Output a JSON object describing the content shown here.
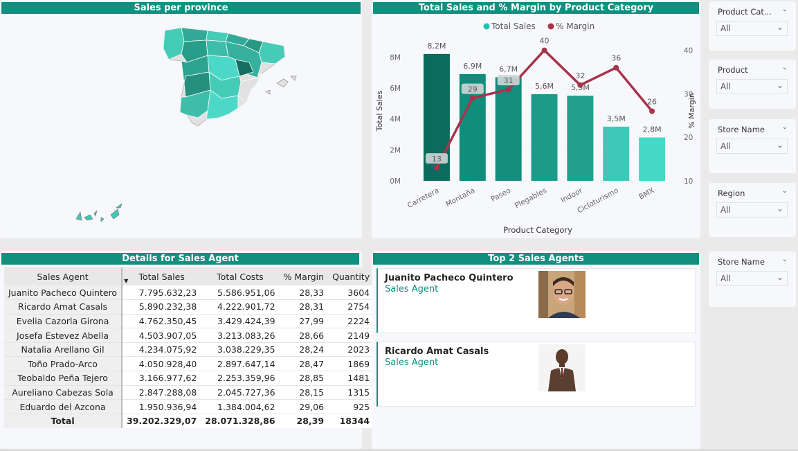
{
  "map": {
    "title": "Sales per province"
  },
  "chart": {
    "title": "Total Sales and % Margin by Product Category"
  },
  "chart_data": {
    "type": "bar",
    "title": "Total Sales and % Margin by Product Category",
    "xlabel": "Product Category",
    "ylabel": "Total Sales",
    "y2label": "% Margin",
    "categories": [
      "Carretera",
      "Montaña",
      "Paseo",
      "Plegables",
      "Indoor",
      "Cicloturismo",
      "BMX"
    ],
    "series": [
      {
        "name": "Total Sales",
        "type": "bar",
        "values": [
          8.2,
          6.9,
          6.7,
          5.6,
          5.5,
          3.5,
          2.8
        ],
        "labels": [
          "8,2M",
          "6,9M",
          "6,7M",
          "5,6M",
          "5,5M",
          "3,5M",
          "2,8M"
        ]
      },
      {
        "name": "% Margin",
        "type": "line",
        "values": [
          13,
          29,
          31,
          40,
          32,
          36,
          26
        ],
        "labels": [
          "13",
          "29",
          "31",
          "40",
          "32",
          "36",
          "26"
        ]
      }
    ],
    "ylim": [
      0,
      9
    ],
    "y2lim": [
      10,
      42
    ],
    "yticks": [
      "0M",
      "2M",
      "4M",
      "6M",
      "8M"
    ],
    "y2ticks": [
      "10",
      "20",
      "30",
      "40"
    ],
    "legend": "top-center",
    "bar_colors": [
      "#0b6b5c",
      "#118d7b",
      "#148d7d",
      "#1d9b89",
      "#22a08e",
      "#3cc9b8",
      "#45d8c6"
    ],
    "line_color": "#a8334b"
  },
  "table": {
    "title": "Details for Sales Agent",
    "columns": [
      "Sales Agent",
      "Total Sales",
      "Total Costs",
      "% Margin",
      "Quantity"
    ],
    "rows": [
      [
        "Juanito Pacheco Quintero",
        "7.795.632,23",
        "5.586.951,06",
        "28,33",
        "3604"
      ],
      [
        "Ricardo Amat Casals",
        "5.890.232,38",
        "4.222.901,72",
        "28,31",
        "2754"
      ],
      [
        "Evelia Cazorla Girona",
        "4.762.350,45",
        "3.429.424,39",
        "27,99",
        "2224"
      ],
      [
        "Josefa Estevez Abella",
        "4.503.907,05",
        "3.213.083,26",
        "28,66",
        "2149"
      ],
      [
        "Natalia Arellano Gil",
        "4.234.075,92",
        "3.038.229,35",
        "28,24",
        "2023"
      ],
      [
        "Toño Prado-Arco",
        "4.050.928,40",
        "2.897.647,14",
        "28,47",
        "1869"
      ],
      [
        "Teobaldo Peña Tejero",
        "3.166.977,62",
        "2.253.359,96",
        "28,85",
        "1481"
      ],
      [
        "Aureliano Cabezas Sola",
        "2.847.288,08",
        "2.045.727,36",
        "28,15",
        "1315"
      ],
      [
        "Eduardo del Azcona",
        "1.950.936,94",
        "1.384.004,62",
        "29,06",
        "925"
      ]
    ],
    "total": [
      "Total",
      "39.202.329,07",
      "28.071.328,86",
      "28,39",
      "18344"
    ]
  },
  "agents": {
    "title": "Top 2 Sales Agents",
    "cards": [
      {
        "name": "Juanito Pacheco Quintero",
        "role": "Sales Agent"
      },
      {
        "name": "Ricardo Amat Casals",
        "role": "Sales Agent"
      }
    ]
  },
  "slicers": [
    {
      "label": "Product Cat...",
      "value": "All"
    },
    {
      "label": "Product",
      "value": "All"
    },
    {
      "label": "Store Name",
      "value": "All"
    },
    {
      "label": "Region",
      "value": "All"
    },
    {
      "label": "Store Name",
      "value": "All"
    }
  ],
  "icons": {
    "chevron": "chevron-down-icon",
    "sort": "sort-desc-icon"
  }
}
